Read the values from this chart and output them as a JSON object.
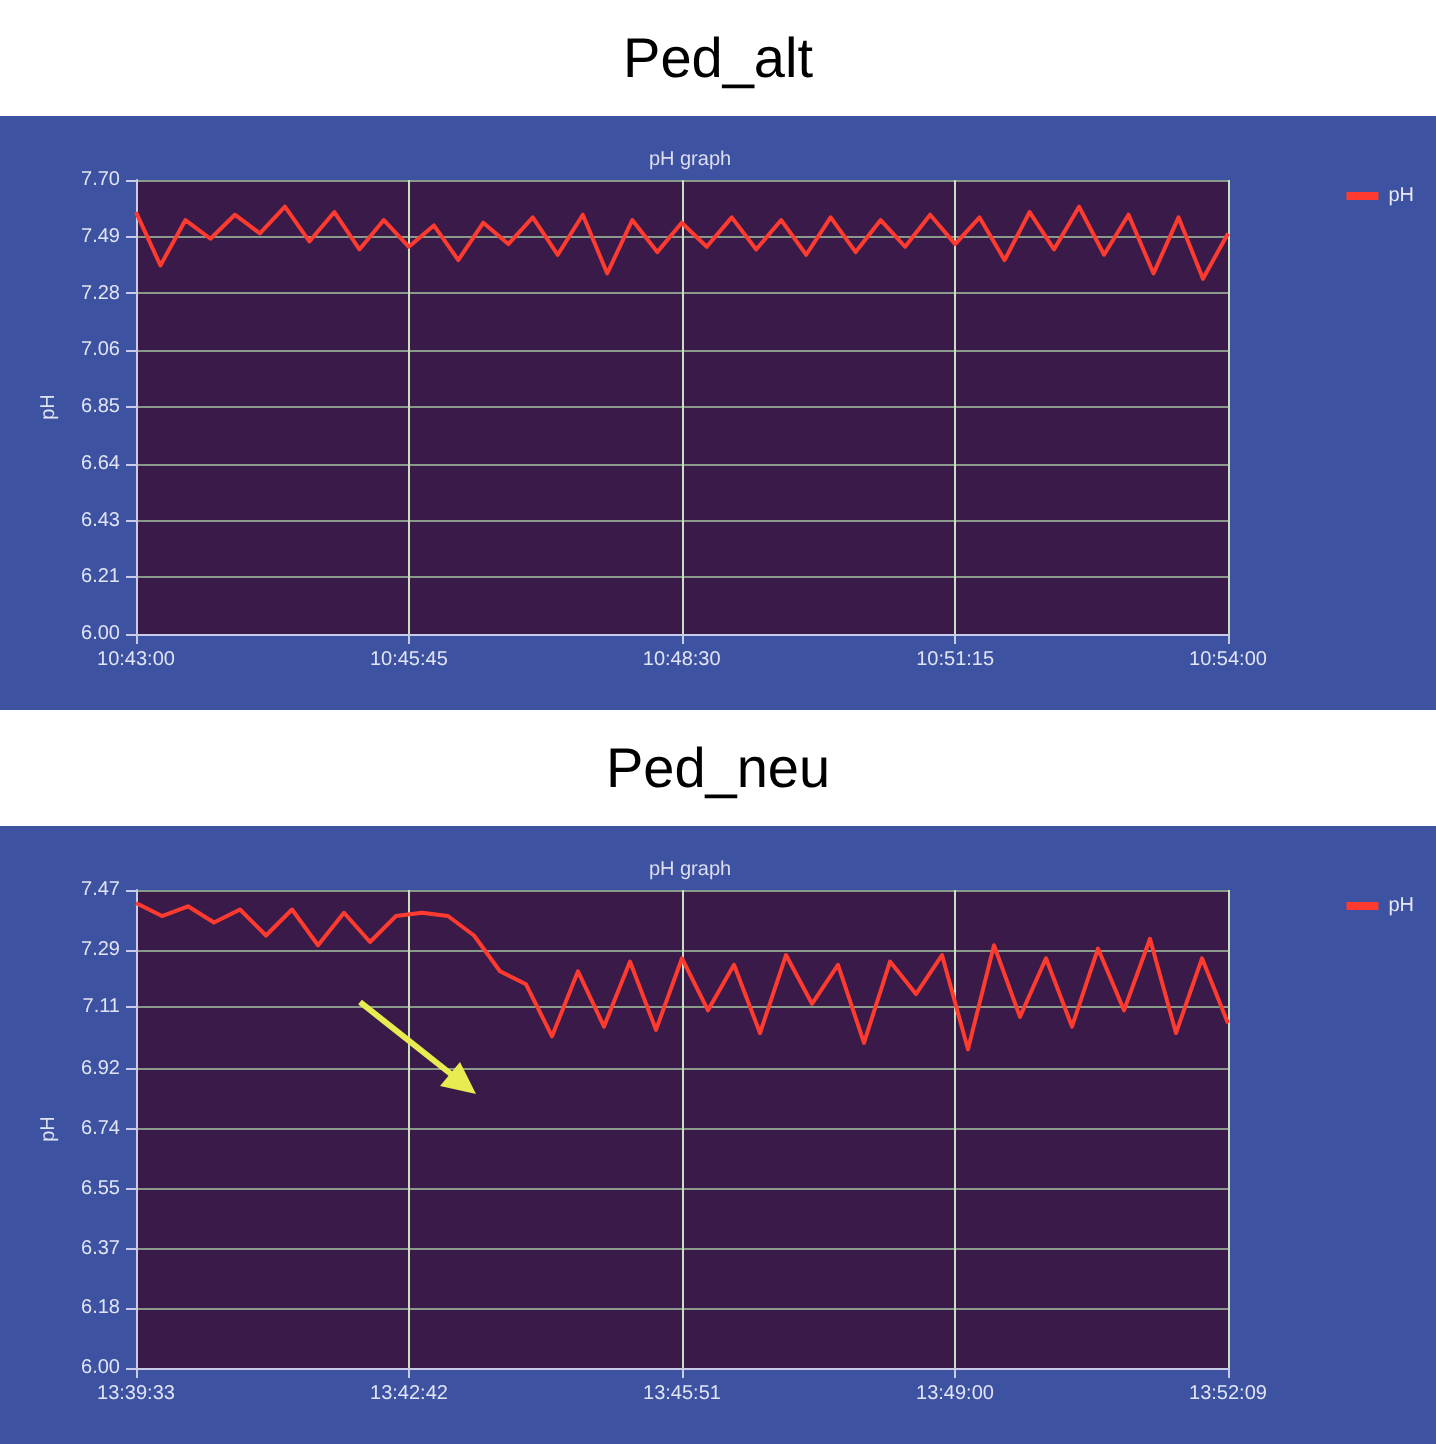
{
  "chart_data": [
    {
      "type": "line",
      "title": "Ped_alt",
      "subtitle": "pH graph",
      "ylabel": "pH",
      "legend": "top right",
      "grid": true,
      "marker": "none",
      "line_style": "solid",
      "xlim": [
        10.7167,
        10.9
      ],
      "xticks": [
        {
          "value": 10.7167,
          "label": "10:43:00"
        },
        {
          "value": 10.7625,
          "label": "10:45:45"
        },
        {
          "value": 10.8083,
          "label": "10:48:30"
        },
        {
          "value": 10.8542,
          "label": "10:51:15"
        },
        {
          "value": 10.9,
          "label": "10:54:00"
        }
      ],
      "ylim": [
        6.0,
        7.7
      ],
      "yticks": [
        {
          "value": 6.0,
          "label": "6.00"
        },
        {
          "value": 6.2125,
          "label": "6.21"
        },
        {
          "value": 6.425,
          "label": "6.43"
        },
        {
          "value": 6.6375,
          "label": "6.64"
        },
        {
          "value": 6.85,
          "label": "6.85"
        },
        {
          "value": 7.0625,
          "label": "7.06"
        },
        {
          "value": 7.275,
          "label": "7.28"
        },
        {
          "value": 7.4875,
          "label": "7.49"
        },
        {
          "value": 7.7,
          "label": "7.70"
        }
      ],
      "x": [
        10.7167,
        10.7208,
        10.725,
        10.7292,
        10.7333,
        10.7375,
        10.7417,
        10.7458,
        10.75,
        10.7542,
        10.7583,
        10.7625,
        10.7667,
        10.7708,
        10.775,
        10.7792,
        10.7833,
        10.7875,
        10.7917,
        10.7958,
        10.8,
        10.8042,
        10.8083,
        10.8125,
        10.8167,
        10.8208,
        10.825,
        10.8292,
        10.8333,
        10.8375,
        10.8417,
        10.8458,
        10.85,
        10.8542,
        10.8583,
        10.8625,
        10.8667,
        10.8708,
        10.875,
        10.8792,
        10.8833,
        10.8875,
        10.8917,
        10.8958,
        10.9
      ],
      "series": [
        {
          "name": "pH",
          "color": "#ff3b2f",
          "values": [
            7.58,
            7.38,
            7.55,
            7.48,
            7.57,
            7.5,
            7.6,
            7.47,
            7.58,
            7.44,
            7.55,
            7.45,
            7.53,
            7.4,
            7.54,
            7.46,
            7.56,
            7.42,
            7.57,
            7.35,
            7.55,
            7.43,
            7.54,
            7.45,
            7.56,
            7.44,
            7.55,
            7.42,
            7.56,
            7.43,
            7.55,
            7.45,
            7.57,
            7.46,
            7.56,
            7.4,
            7.58,
            7.44,
            7.6,
            7.42,
            7.57,
            7.35,
            7.56,
            7.33,
            7.5
          ]
        }
      ]
    },
    {
      "type": "line",
      "title": "Ped_neu",
      "subtitle": "pH graph",
      "ylabel": "pH",
      "legend": "top right",
      "grid": true,
      "marker": "none",
      "line_style": "solid",
      "xlim": [
        13.6592,
        13.8692
      ],
      "xticks": [
        {
          "value": 13.6592,
          "label": "13:39:33"
        },
        {
          "value": 13.7117,
          "label": "13:42:42"
        },
        {
          "value": 13.7642,
          "label": "13:45:51"
        },
        {
          "value": 13.8167,
          "label": "13:49:00"
        },
        {
          "value": 13.8692,
          "label": "13:52:09"
        }
      ],
      "ylim": [
        6.0,
        7.47
      ],
      "yticks": [
        {
          "value": 6.0,
          "label": "6.00"
        },
        {
          "value": 6.18375,
          "label": "6.18"
        },
        {
          "value": 6.3675,
          "label": "6.37"
        },
        {
          "value": 6.55125,
          "label": "6.55"
        },
        {
          "value": 6.735,
          "label": "6.74"
        },
        {
          "value": 6.91875,
          "label": "6.92"
        },
        7.11,
        {
          "value": 7.28625,
          "label": "7.29"
        },
        {
          "value": 7.47,
          "label": "7.47"
        }
      ],
      "x": [
        13.6592,
        13.6642,
        13.6692,
        13.6742,
        13.6792,
        13.6842,
        13.6892,
        13.6942,
        13.6992,
        13.7042,
        13.7092,
        13.7142,
        13.7192,
        13.7242,
        13.7292,
        13.7342,
        13.7392,
        13.7442,
        13.7492,
        13.7542,
        13.7592,
        13.7642,
        13.7692,
        13.7742,
        13.7792,
        13.7842,
        13.7892,
        13.7942,
        13.7992,
        13.8042,
        13.8092,
        13.8142,
        13.8192,
        13.8242,
        13.8292,
        13.8342,
        13.8392,
        13.8442,
        13.8492,
        13.8542,
        13.8592,
        13.8642,
        13.8692
      ],
      "series": [
        {
          "name": "pH",
          "color": "#ff3b2f",
          "values": [
            7.43,
            7.39,
            7.42,
            7.37,
            7.41,
            7.33,
            7.41,
            7.3,
            7.4,
            7.31,
            7.39,
            7.4,
            7.39,
            7.33,
            7.22,
            7.18,
            7.02,
            7.22,
            7.05,
            7.25,
            7.04,
            7.26,
            7.1,
            7.24,
            7.03,
            7.27,
            7.12,
            7.24,
            7.0,
            7.25,
            7.15,
            7.27,
            6.98,
            7.3,
            7.08,
            7.26,
            7.05,
            7.29,
            7.1,
            7.32,
            7.03,
            7.26,
            7.06
          ]
        }
      ]
    }
  ]
}
